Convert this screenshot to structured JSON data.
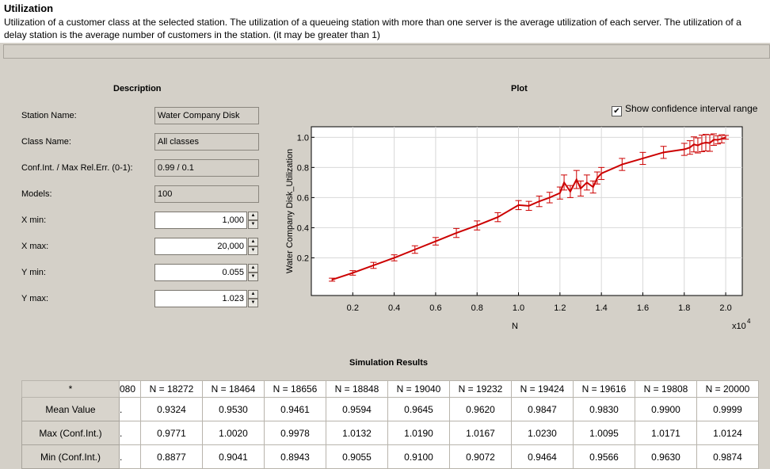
{
  "header": {
    "title": "Utilization",
    "description": "Utilization of a customer class at the selected station. The utilization of a queueing station with more than one server is the average utilization of each server. The utilization of a delay station is the average number of customers in the station. (it may be greater than 1)"
  },
  "description_section": {
    "title": "Description",
    "fields": {
      "station_name": {
        "label": "Station Name:",
        "value": "Water Company Disk"
      },
      "class_name": {
        "label": "Class Name:",
        "value": "All classes"
      },
      "conf_int": {
        "label": "Conf.Int. / Max Rel.Err. (0-1):",
        "value": "0.99 / 0.1"
      },
      "models": {
        "label": "Models:",
        "value": "100"
      },
      "x_min": {
        "label": "X min:",
        "value": "1,000"
      },
      "x_max": {
        "label": "X max:",
        "value": "20,000"
      },
      "y_min": {
        "label": "Y min:",
        "value": "0.055"
      },
      "y_max": {
        "label": "Y max:",
        "value": "1.023"
      }
    }
  },
  "plot_section": {
    "title": "Plot",
    "show_ci_label": "Show confidence interval range",
    "show_ci_checked": true
  },
  "chart_data": {
    "type": "line",
    "xlabel": "N",
    "ylabel": "Water Company Disk_Utilization",
    "x_multiplier_label": "x10",
    "x_multiplier_exp": "4",
    "xlim": [
      0,
      20800
    ],
    "ylim": [
      -0.05,
      1.07
    ],
    "xticks": [
      "0.2",
      "0.4",
      "0.6",
      "0.8",
      "1.0",
      "1.2",
      "1.4",
      "1.6",
      "1.8",
      "2.0"
    ],
    "xtick_values": [
      2000,
      4000,
      6000,
      8000,
      10000,
      12000,
      14000,
      16000,
      18000,
      20000
    ],
    "yticks": [
      "0.2",
      "0.4",
      "0.6",
      "0.8",
      "1.0"
    ],
    "ytick_values": [
      0.2,
      0.4,
      0.6,
      0.8,
      1.0
    ],
    "grid": true,
    "line_color": "#cc0000",
    "x": [
      1000,
      2000,
      3000,
      4000,
      5000,
      6000,
      7000,
      8000,
      9000,
      10000,
      10500,
      11000,
      11500,
      12000,
      12200,
      12500,
      12800,
      13000,
      13300,
      13600,
      13800,
      14000,
      15000,
      16000,
      17000,
      18000,
      18272,
      18464,
      18656,
      18848,
      19040,
      19232,
      19424,
      19616,
      19808,
      20000
    ],
    "y": [
      0.055,
      0.1,
      0.15,
      0.2,
      0.255,
      0.31,
      0.365,
      0.415,
      0.47,
      0.55,
      0.545,
      0.575,
      0.6,
      0.63,
      0.7,
      0.64,
      0.72,
      0.66,
      0.7,
      0.67,
      0.73,
      0.76,
      0.82,
      0.86,
      0.9,
      0.92,
      0.9324,
      0.953,
      0.9461,
      0.9594,
      0.9645,
      0.962,
      0.9847,
      0.983,
      0.99,
      0.9999
    ],
    "ci": [
      0.01,
      0.015,
      0.02,
      0.02,
      0.025,
      0.025,
      0.03,
      0.03,
      0.03,
      0.03,
      0.03,
      0.035,
      0.035,
      0.04,
      0.05,
      0.04,
      0.06,
      0.05,
      0.05,
      0.04,
      0.04,
      0.04,
      0.04,
      0.04,
      0.04,
      0.04,
      0.045,
      0.05,
      0.05,
      0.055,
      0.055,
      0.055,
      0.038,
      0.027,
      0.027,
      0.0125
    ]
  },
  "results": {
    "title": "Simulation Results",
    "corner": "*",
    "partial_col": "080",
    "partial_cells": [
      ".",
      ".",
      "."
    ],
    "columns": [
      "N = 18272",
      "N = 18464",
      "N = 18656",
      "N = 18848",
      "N = 19040",
      "N = 19232",
      "N = 19424",
      "N = 19616",
      "N = 19808",
      "N = 20000"
    ],
    "rows": [
      {
        "label": "Mean Value",
        "values": [
          "0.9324",
          "0.9530",
          "0.9461",
          "0.9594",
          "0.9645",
          "0.9620",
          "0.9847",
          "0.9830",
          "0.9900",
          "0.9999"
        ]
      },
      {
        "label": "Max (Conf.Int.)",
        "values": [
          "0.9771",
          "1.0020",
          "0.9978",
          "1.0132",
          "1.0190",
          "1.0167",
          "1.0230",
          "1.0095",
          "1.0171",
          "1.0124"
        ]
      },
      {
        "label": "Min (Conf.Int.)",
        "values": [
          "0.8877",
          "0.9041",
          "0.8943",
          "0.9055",
          "0.9100",
          "0.9072",
          "0.9464",
          "0.9566",
          "0.9630",
          "0.9874"
        ]
      }
    ]
  }
}
